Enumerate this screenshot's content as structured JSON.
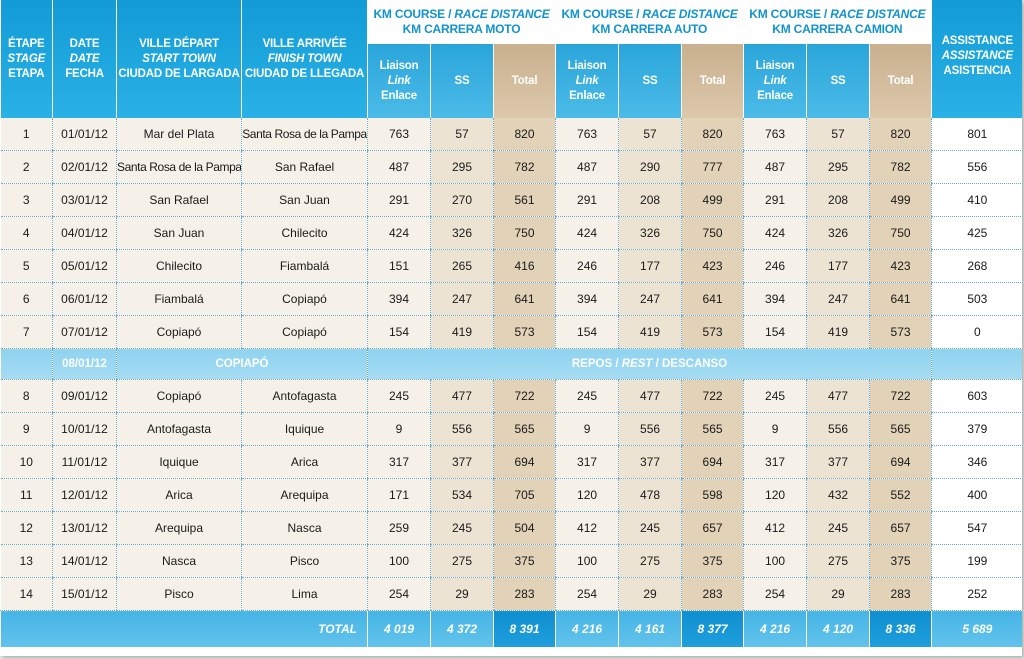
{
  "headers": {
    "stage": [
      "ÉTAPE",
      "STAGE",
      "ETAPA"
    ],
    "date": [
      "DATE",
      "DATE",
      "FECHA"
    ],
    "start": [
      "VILLE DÉPART",
      "START TOWN",
      "CIUDAD DE LARGADA"
    ],
    "finish": [
      "VILLE ARRIVÉE",
      "FINISH TOWN",
      "CIUDAD DE LLEGADA"
    ],
    "dist_fr": "KM COURSE /",
    "dist_en": "RACE DISTANCE",
    "moto": "KM CARRERA MOTO",
    "auto": "KM CARRERA AUTO",
    "camion": "KM CARRERA CAMION",
    "liaison": [
      "Liaison",
      "Link",
      "Enlace"
    ],
    "ss": "SS",
    "total": "Total",
    "assistance": [
      "ASSISTANCE",
      "ASSISTANCE",
      "ASISTENCIA"
    ]
  },
  "rows_a": [
    {
      "stage": "1",
      "date": "01/01/12",
      "start": "Mar del Plata",
      "finish": "Santa Rosa de la Pampa",
      "m": [
        "763",
        "57",
        "820"
      ],
      "a": [
        "763",
        "57",
        "820"
      ],
      "c": [
        "763",
        "57",
        "820"
      ],
      "assist": "801"
    },
    {
      "stage": "2",
      "date": "02/01/12",
      "start": "Santa Rosa de la Pampa",
      "finish": "San Rafael",
      "m": [
        "487",
        "295",
        "782"
      ],
      "a": [
        "487",
        "290",
        "777"
      ],
      "c": [
        "487",
        "295",
        "782"
      ],
      "assist": "556"
    },
    {
      "stage": "3",
      "date": "03/01/12",
      "start": "San Rafael",
      "finish": "San Juan",
      "m": [
        "291",
        "270",
        "561"
      ],
      "a": [
        "291",
        "208",
        "499"
      ],
      "c": [
        "291",
        "208",
        "499"
      ],
      "assist": "410"
    },
    {
      "stage": "4",
      "date": "04/01/12",
      "start": "San Juan",
      "finish": "Chilecito",
      "m": [
        "424",
        "326",
        "750"
      ],
      "a": [
        "424",
        "326",
        "750"
      ],
      "c": [
        "424",
        "326",
        "750"
      ],
      "assist": "425"
    },
    {
      "stage": "5",
      "date": "05/01/12",
      "start": "Chilecito",
      "finish": "Fiambalá",
      "m": [
        "151",
        "265",
        "416"
      ],
      "a": [
        "246",
        "177",
        "423"
      ],
      "c": [
        "246",
        "177",
        "423"
      ],
      "assist": "268"
    },
    {
      "stage": "6",
      "date": "06/01/12",
      "start": "Fiambalá",
      "finish": "Copiapó",
      "m": [
        "394",
        "247",
        "641"
      ],
      "a": [
        "394",
        "247",
        "641"
      ],
      "c": [
        "394",
        "247",
        "641"
      ],
      "assist": "503"
    },
    {
      "stage": "7",
      "date": "07/01/12",
      "start": "Copiapó",
      "finish": "Copiapó",
      "m": [
        "154",
        "419",
        "573"
      ],
      "a": [
        "154",
        "419",
        "573"
      ],
      "c": [
        "154",
        "419",
        "573"
      ],
      "assist": "0"
    }
  ],
  "rest": {
    "date": "08/01/12",
    "town": "COPIAPÓ",
    "label_fr": "REPOS /",
    "label_en": "REST",
    "label_es": "/ DESCANSO"
  },
  "rows_b": [
    {
      "stage": "8",
      "date": "09/01/12",
      "start": "Copiapó",
      "finish": "Antofagasta",
      "m": [
        "245",
        "477",
        "722"
      ],
      "a": [
        "245",
        "477",
        "722"
      ],
      "c": [
        "245",
        "477",
        "722"
      ],
      "assist": "603"
    },
    {
      "stage": "9",
      "date": "10/01/12",
      "start": "Antofagasta",
      "finish": "Iquique",
      "m": [
        "9",
        "556",
        "565"
      ],
      "a": [
        "9",
        "556",
        "565"
      ],
      "c": [
        "9",
        "556",
        "565"
      ],
      "assist": "379"
    },
    {
      "stage": "10",
      "date": "11/01/12",
      "start": "Iquique",
      "finish": "Arica",
      "m": [
        "317",
        "377",
        "694"
      ],
      "a": [
        "317",
        "377",
        "694"
      ],
      "c": [
        "317",
        "377",
        "694"
      ],
      "assist": "346"
    },
    {
      "stage": "11",
      "date": "12/01/12",
      "start": "Arica",
      "finish": "Arequipa",
      "m": [
        "171",
        "534",
        "705"
      ],
      "a": [
        "120",
        "478",
        "598"
      ],
      "c": [
        "120",
        "432",
        "552"
      ],
      "assist": "400"
    },
    {
      "stage": "12",
      "date": "13/01/12",
      "start": "Arequipa",
      "finish": "Nasca",
      "m": [
        "259",
        "245",
        "504"
      ],
      "a": [
        "412",
        "245",
        "657"
      ],
      "c": [
        "412",
        "245",
        "657"
      ],
      "assist": "547"
    },
    {
      "stage": "13",
      "date": "14/01/12",
      "start": "Nasca",
      "finish": "Pisco",
      "m": [
        "100",
        "275",
        "375"
      ],
      "a": [
        "100",
        "275",
        "375"
      ],
      "c": [
        "100",
        "275",
        "375"
      ],
      "assist": "199"
    },
    {
      "stage": "14",
      "date": "15/01/12",
      "start": "Pisco",
      "finish": "Lima",
      "m": [
        "254",
        "29",
        "283"
      ],
      "a": [
        "254",
        "29",
        "283"
      ],
      "c": [
        "254",
        "29",
        "283"
      ],
      "assist": "252"
    }
  ],
  "totals": {
    "label": "TOTAL",
    "m": [
      "4 019",
      "4 372",
      "8 391"
    ],
    "a": [
      "4 216",
      "4 161",
      "8 377"
    ],
    "c": [
      "4 216",
      "4 120",
      "8 336"
    ],
    "assist": "5 689"
  }
}
